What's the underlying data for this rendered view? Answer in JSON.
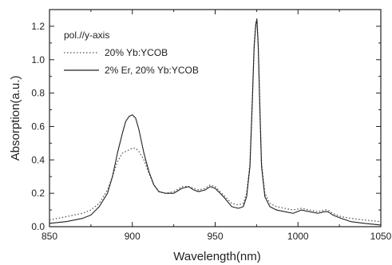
{
  "chart_data": {
    "type": "line",
    "xlabel": "Wavelength(nm)",
    "ylabel": "Absorption(a.u.)",
    "xlim": [
      850,
      1050
    ],
    "ylim": [
      0.0,
      1.3
    ],
    "x_ticks": [
      850,
      900,
      950,
      1000,
      1050
    ],
    "y_ticks": [
      0.0,
      0.2,
      0.4,
      0.6,
      0.8,
      1.0,
      1.2
    ],
    "x_tick_labels": [
      "850",
      "900",
      "950",
      "1000",
      "1050"
    ],
    "y_tick_labels": [
      "0.0",
      "0.2",
      "0.4",
      "0.6",
      "0.8",
      "1.0",
      "1.2"
    ],
    "grid": false,
    "legend_position": "top-left",
    "legend_header": "pol.//y-axis",
    "series": [
      {
        "name": "20% Yb:YCOB",
        "style": "dotted",
        "color": "#555555",
        "x": [
          850,
          860,
          870,
          875,
          880,
          885,
          888,
          891,
          894,
          896,
          898,
          900,
          902,
          904,
          907,
          910,
          913,
          916,
          920,
          925,
          930,
          934,
          937,
          940,
          944,
          947,
          950,
          955,
          960,
          964,
          967,
          969,
          971,
          972.5,
          973.5,
          974.5,
          975.2,
          976,
          977,
          978,
          980,
          983,
          987,
          992,
          997,
          1002,
          1007,
          1012,
          1016,
          1018,
          1021,
          1026,
          1032,
          1040,
          1050
        ],
        "y": [
          0.04,
          0.06,
          0.08,
          0.1,
          0.14,
          0.22,
          0.3,
          0.39,
          0.44,
          0.45,
          0.46,
          0.47,
          0.47,
          0.45,
          0.4,
          0.32,
          0.25,
          0.21,
          0.2,
          0.21,
          0.24,
          0.24,
          0.23,
          0.22,
          0.23,
          0.25,
          0.24,
          0.19,
          0.14,
          0.13,
          0.14,
          0.2,
          0.38,
          0.78,
          1.08,
          1.22,
          1.25,
          1.1,
          0.72,
          0.38,
          0.2,
          0.14,
          0.12,
          0.11,
          0.1,
          0.11,
          0.1,
          0.09,
          0.1,
          0.1,
          0.08,
          0.06,
          0.05,
          0.04,
          0.03
        ]
      },
      {
        "name": "2% Er, 20% Yb:YCOB",
        "style": "solid",
        "color": "#222222",
        "x": [
          850,
          860,
          870,
          875,
          880,
          885,
          888,
          891,
          894,
          896,
          898,
          900,
          902,
          904,
          907,
          910,
          913,
          916,
          920,
          925,
          930,
          934,
          937,
          940,
          944,
          947,
          950,
          955,
          960,
          964,
          967,
          969,
          971,
          972.5,
          973.5,
          974.5,
          975.2,
          976,
          977,
          978,
          980,
          983,
          987,
          992,
          997,
          1002,
          1007,
          1012,
          1016,
          1018,
          1021,
          1026,
          1032,
          1040,
          1050
        ],
        "y": [
          0.02,
          0.03,
          0.05,
          0.07,
          0.12,
          0.2,
          0.3,
          0.44,
          0.56,
          0.63,
          0.66,
          0.67,
          0.65,
          0.58,
          0.44,
          0.33,
          0.25,
          0.21,
          0.2,
          0.2,
          0.23,
          0.24,
          0.22,
          0.21,
          0.22,
          0.24,
          0.23,
          0.18,
          0.12,
          0.11,
          0.12,
          0.18,
          0.36,
          0.77,
          1.07,
          1.21,
          1.24,
          1.08,
          0.7,
          0.36,
          0.18,
          0.12,
          0.1,
          0.09,
          0.08,
          0.1,
          0.09,
          0.08,
          0.09,
          0.09,
          0.07,
          0.05,
          0.03,
          0.02,
          0.01
        ]
      }
    ]
  }
}
